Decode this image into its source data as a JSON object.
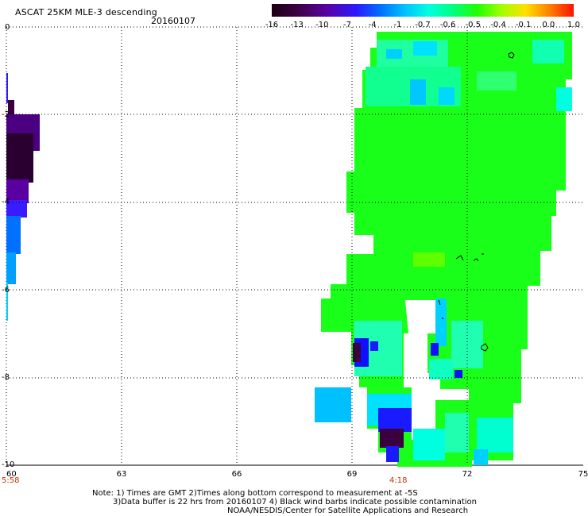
{
  "header": {
    "title": "ASCAT 25KM MLE-3 descending",
    "date": "20160107"
  },
  "colorbar": {
    "labels": [
      "-16",
      "-13",
      "-10",
      "-7",
      "-4",
      "-1",
      "-0.7",
      "-0.6",
      "-0.5",
      "-0.4",
      "-0.1",
      "0.0",
      "1.0"
    ],
    "colors": [
      "#28001e",
      "#4a0066",
      "#5500c0",
      "#1a1aff",
      "#0088ff",
      "#00d0ff",
      "#00ffe0",
      "#00ff80",
      "#30ff00",
      "#c0ff00",
      "#ffd000",
      "#ff7000",
      "#ff2000"
    ]
  },
  "axes": {
    "y_ticks": [
      "0",
      "-2",
      "-4",
      "-6",
      "-8",
      "-10"
    ],
    "x_ticks": [
      "60",
      "63",
      "66",
      "69",
      "72",
      "75"
    ],
    "x_times": [
      "5:58",
      "4:18"
    ]
  },
  "notes": [
    "Note: 1) Times are GMT 2)Times along bottom correspond to measurement at -5S",
    "3)Data buffer is 22 hrs from 20160107 4) Black wind barbs indicate possible contamination",
    "NOAA/NESDIS/Center for Satellite Applications and Research"
  ],
  "map_data": {
    "lon_range": [
      60,
      75
    ],
    "lat_range": [
      -10,
      0
    ],
    "grid": "dotted",
    "swaths": [
      {
        "name": "west swath",
        "dominant_value": "-13 to -4"
      },
      {
        "name": "east swath",
        "dominant_value": "-0.6 to -0.5"
      }
    ]
  }
}
